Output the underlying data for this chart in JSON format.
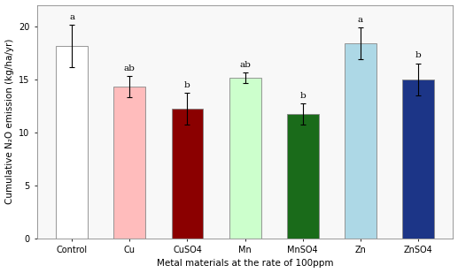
{
  "categories": [
    "Control",
    "Cu",
    "CuSO4",
    "Mn",
    "MnSO4",
    "Zn",
    "ZnSO4"
  ],
  "values": [
    18.1,
    14.3,
    12.2,
    15.1,
    11.7,
    18.4,
    15.0
  ],
  "errors": [
    2.0,
    1.0,
    1.5,
    0.5,
    1.0,
    1.5,
    1.5
  ],
  "letters": [
    "a",
    "ab",
    "b",
    "ab",
    "b",
    "a",
    "b"
  ],
  "bar_colors": [
    "#FFFFFF",
    "#FFBCBC",
    "#8B0000",
    "#CCFFCC",
    "#1A6B1A",
    "#ADD8E6",
    "#1C3587"
  ],
  "bar_edge_colors": [
    "#888888",
    "#888888",
    "#888888",
    "#888888",
    "#888888",
    "#888888",
    "#888888"
  ],
  "xlabel": "Metal materials at the rate of 100ppm",
  "ylabel": "Cumulative N₂O emission (kg/ha/yr)",
  "ylim": [
    0,
    22
  ],
  "yticks": [
    0,
    5,
    10,
    15,
    20
  ],
  "figsize": [
    5.17,
    3.09
  ],
  "dpi": 100,
  "letter_fontsize": 7.5,
  "axis_label_fontsize": 7.5,
  "tick_fontsize": 7.0,
  "bar_width": 0.55
}
